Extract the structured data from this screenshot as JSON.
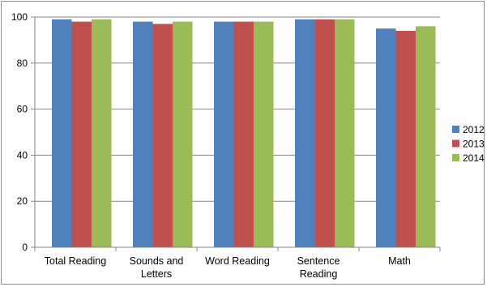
{
  "chart_data": {
    "type": "bar",
    "categories": [
      [
        "Total Reading"
      ],
      [
        "Sounds and",
        "Letters"
      ],
      [
        "Word Reading"
      ],
      [
        "Sentence",
        "Reading"
      ],
      [
        "Math"
      ]
    ],
    "series": [
      {
        "name": "2012",
        "color": "#4f81bd",
        "values": [
          99,
          98,
          98,
          99,
          95
        ]
      },
      {
        "name": "2013",
        "color": "#c0504d",
        "values": [
          98,
          97,
          98,
          99,
          94
        ]
      },
      {
        "name": "2014",
        "color": "#9bbb59",
        "values": [
          99,
          98,
          98,
          99,
          96
        ]
      }
    ],
    "ylim": [
      0,
      100
    ],
    "yticks": [
      0,
      20,
      40,
      60,
      80,
      100
    ],
    "grid": true,
    "legend": "right",
    "title": "",
    "xlabel": "",
    "ylabel": ""
  }
}
